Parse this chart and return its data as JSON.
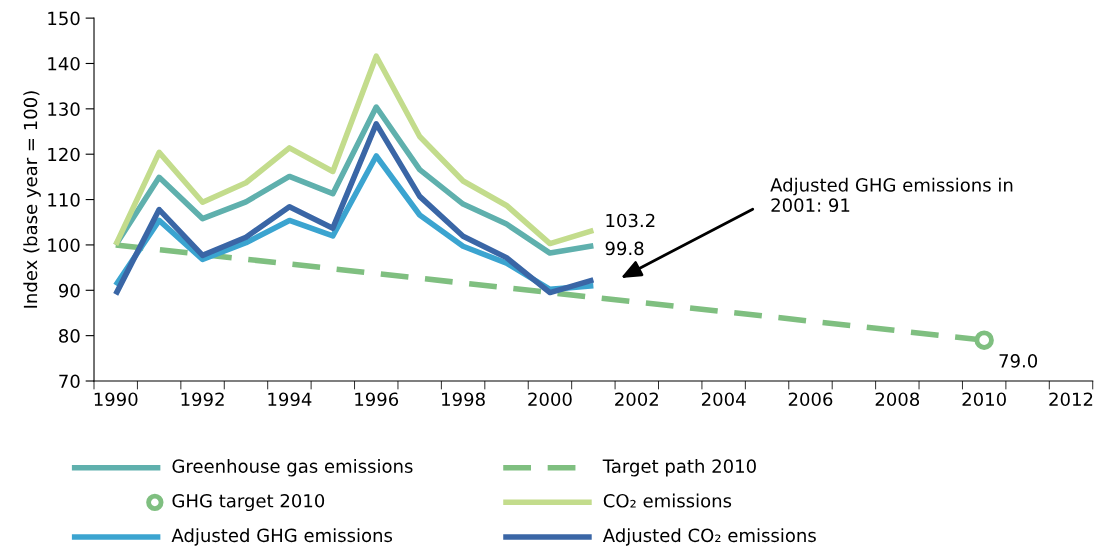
{
  "chart_data": {
    "type": "line",
    "ylabel": "Index (base year = 100)",
    "categories": [
      "1990",
      null,
      "1992",
      null,
      "1994",
      null,
      "1996",
      null,
      "1998",
      null,
      "2000",
      null,
      "2002",
      null,
      "2004",
      null,
      "2006",
      null,
      "2008",
      null,
      "2010",
      null,
      "2012"
    ],
    "ylim": [
      70,
      150
    ],
    "yticks": [
      70,
      80,
      90,
      100,
      110,
      120,
      130,
      140,
      150
    ],
    "legend": "bottom",
    "grid": false,
    "series": [
      {
        "name": "Greenhouse gas emissions",
        "color": "#5fb0ad",
        "values": [
          100,
          114.9,
          105.8,
          109.5,
          115.1,
          111.3,
          130.4,
          116.6,
          109.0,
          104.6,
          98.2,
          99.8,
          null,
          null,
          null,
          null,
          null,
          null,
          null,
          null,
          null,
          null,
          null
        ],
        "value_labels": [
          null,
          null,
          null,
          null,
          null,
          null,
          null,
          null,
          null,
          null,
          null,
          "99.8",
          null,
          null,
          null,
          null,
          null,
          null,
          null,
          null,
          null,
          null,
          null
        ]
      },
      {
        "name": "Target path 2010",
        "color": "#7fbf80",
        "line_style": "dashed",
        "values": [
          100,
          null,
          null,
          null,
          null,
          null,
          null,
          null,
          null,
          null,
          null,
          null,
          null,
          null,
          null,
          null,
          null,
          null,
          null,
          null,
          79.0,
          null,
          null
        ]
      },
      {
        "name": "GHG target 2010",
        "type": "scatter",
        "marker": "circle",
        "color": "#7fbf80",
        "values": [
          null,
          null,
          null,
          null,
          null,
          null,
          null,
          null,
          null,
          null,
          null,
          null,
          null,
          null,
          null,
          null,
          null,
          null,
          null,
          null,
          79.0,
          null,
          null
        ],
        "value_labels": [
          null,
          null,
          null,
          null,
          null,
          null,
          null,
          null,
          null,
          null,
          null,
          null,
          null,
          null,
          null,
          null,
          null,
          null,
          null,
          null,
          "79.0",
          null,
          null
        ]
      },
      {
        "name": "CO₂ emissions",
        "color": "#c3dc8c",
        "values": [
          100,
          120.4,
          109.4,
          113.7,
          121.4,
          116.2,
          141.6,
          123.9,
          114.1,
          108.7,
          100.3,
          103.2,
          null,
          null,
          null,
          null,
          null,
          null,
          null,
          null,
          null,
          null,
          null
        ],
        "value_labels": [
          null,
          null,
          null,
          null,
          null,
          null,
          null,
          null,
          null,
          null,
          null,
          "103.2",
          null,
          null,
          null,
          null,
          null,
          null,
          null,
          null,
          null,
          null,
          null
        ]
      },
      {
        "name": "Adjusted GHG emissions",
        "color": "#3ba4d0",
        "values": [
          91.1,
          105.4,
          96.8,
          100.5,
          105.4,
          102.0,
          119.6,
          106.6,
          99.7,
          96.0,
          90.2,
          91,
          null,
          null,
          null,
          null,
          null,
          null,
          null,
          null,
          null,
          null,
          null
        ]
      },
      {
        "name": "Adjusted CO₂ emissions",
        "color": "#3a66a6",
        "values": [
          89.1,
          107.8,
          97.7,
          101.7,
          108.4,
          103.7,
          126.7,
          110.7,
          101.9,
          97.2,
          89.5,
          92.3,
          null,
          null,
          null,
          null,
          null,
          null,
          null,
          null,
          null,
          null,
          null
        ]
      }
    ],
    "annotations": [
      "Adjusted GHG emissions in\n2001: 91"
    ]
  }
}
